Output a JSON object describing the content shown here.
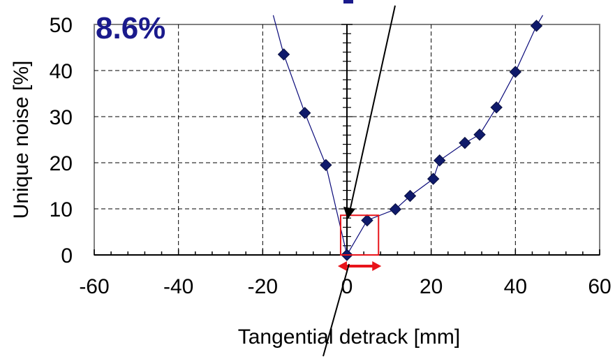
{
  "chart_data": {
    "type": "scatter",
    "xlabel": "Tangential detrack [mm]",
    "ylabel": "Unique noise [%]",
    "xlim": [
      -60,
      60
    ],
    "ylim": [
      0,
      50
    ],
    "x_ticks": [
      "-60",
      "-40",
      "-20",
      "0",
      "20",
      "40",
      "60"
    ],
    "y_ticks": [
      "0",
      "10",
      "20",
      "30",
      "40",
      "50"
    ],
    "grid": true,
    "annotation": "8.6%",
    "highlight_box": {
      "x": [
        -1.5,
        7.5
      ],
      "y": [
        0,
        8.6
      ]
    },
    "series": [
      {
        "points": [
          [
            -15,
            43.5
          ],
          [
            -10,
            30.8
          ],
          [
            -5,
            19.5
          ],
          [
            0,
            0
          ],
          [
            4.8,
            7.5
          ],
          [
            11.5,
            9.9
          ],
          [
            15,
            12.8
          ],
          [
            20.5,
            16.5
          ],
          [
            22,
            20.5
          ],
          [
            28,
            24.3
          ],
          [
            31.5,
            26.1
          ],
          [
            35.5,
            32
          ],
          [
            40,
            39.7
          ],
          [
            45,
            49.7
          ]
        ]
      }
    ],
    "colors": {
      "series": "#0a0a7a",
      "marker": "#0f1a6b",
      "box": "#e8141a",
      "text": "#1a1a8c"
    }
  }
}
